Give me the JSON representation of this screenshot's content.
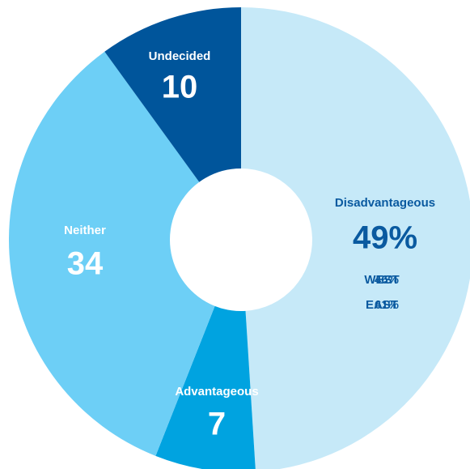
{
  "chart_data": {
    "type": "donut",
    "categories": [
      "Disadvantageous",
      "Advantageous",
      "Neither",
      "Undecided"
    ],
    "values": [
      49,
      7,
      34,
      10
    ],
    "value_labels": [
      "49%",
      "7",
      "34",
      "10"
    ],
    "colors": [
      "#c6e9f8",
      "#00a3e0",
      "#6dcff6",
      "#00559b"
    ],
    "label_colors": [
      "#0a5aa0",
      "#ffffff",
      "#ffffff",
      "#ffffff"
    ],
    "annotations": [
      {
        "text": "WEST",
        "value": 46,
        "value_label": "46%"
      },
      {
        "text": "EAST",
        "value": 61,
        "value_label": "61%"
      }
    ]
  }
}
